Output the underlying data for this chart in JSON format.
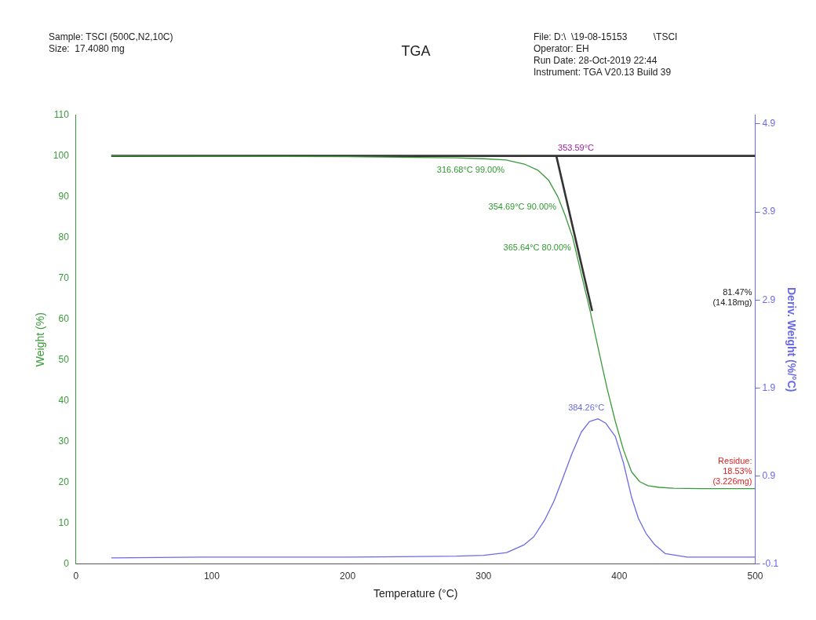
{
  "chart_data": {
    "type": "line",
    "title": "TGA",
    "xlabel": "Temperature (°C)",
    "ylabel": "Weight (%)",
    "y2label": "Deriv. Weight (%/°C)",
    "series": [
      {
        "name": null,
        "color": "#3a9a3a",
        "x": [
          26,
          100,
          200,
          280,
          300,
          316.68,
          330,
          340,
          348,
          354.69,
          360,
          365.64,
          372,
          378.5,
          385,
          391,
          397,
          403,
          409,
          415,
          421,
          429.5,
          440,
          460,
          480,
          500
        ],
        "values": [
          100,
          99.9,
          99.8,
          99.5,
          99.3,
          99,
          98,
          96.5,
          94,
          90,
          85.5,
          80,
          71,
          62,
          52,
          43,
          35,
          28,
          22.6,
          20.2,
          19.2,
          18.8,
          18.6,
          18.5,
          18.5,
          18.5
        ]
      },
      {
        "name": null,
        "color": "#6a6ae6",
        "axis": "y2",
        "x": [
          26,
          100,
          200,
          280,
          300,
          317,
          330,
          337,
          345,
          352,
          358,
          365,
          372,
          378,
          384.26,
          390,
          397,
          403,
          409,
          414,
          419.6,
          426,
          433.7,
          450,
          500
        ],
        "values": [
          -0.03,
          -0.02,
          -0.02,
          -0.01,
          0,
          0.03,
          0.12,
          0.21,
          0.4,
          0.62,
          0.86,
          1.15,
          1.4,
          1.52,
          1.55,
          1.5,
          1.35,
          1.05,
          0.66,
          0.42,
          0.25,
          0.12,
          0.02,
          -0.02,
          -0.02
        ]
      },
      {
        "name": null,
        "color": "#333333",
        "x": [
          26,
          500
        ],
        "values": [
          100,
          100
        ]
      },
      {
        "name": null,
        "color": "#333333",
        "x": [
          353.59,
          380
        ],
        "values": [
          100,
          62
        ]
      }
    ],
    "xlim": [
      0,
      500
    ],
    "xticks": [
      0,
      100,
      200,
      300,
      400,
      500
    ],
    "ylim": [
      0,
      110
    ],
    "yticks": [
      0,
      10,
      20,
      30,
      40,
      50,
      60,
      70,
      80,
      90,
      100,
      110
    ],
    "y2lim": [
      -0.1,
      5.0
    ],
    "y2ticks": [
      -0.1,
      0.9,
      1.9,
      2.9,
      3.9,
      4.9
    ],
    "grid": false,
    "legend": false,
    "marker": "none",
    "line_style": "solid",
    "annotations": [
      "Sample: TSCI (500C,N2,10C)\nSize:  17.4080 mg",
      "File: D:\\  \\19-08-15153          \\TSCI\nOperator: EH\nRun Date: 28-Oct-2019 22:44\nInstrument: TGA V20.13 Build 39",
      {
        "text": "316.68°C 99.00%",
        "x": 316.68,
        "y": 99
      },
      {
        "text": "354.69°C 90.00%",
        "x": 354.69,
        "y": 90
      },
      {
        "text": "365.64°C 80.00%",
        "x": 365.64,
        "y": 80
      },
      {
        "text": "353.59°C",
        "x": 353.59,
        "y": 100
      },
      "384.26°C",
      "81.47%\n(14.18mg)",
      {
        "text": "Residue:\n18.53%\n(3.226mg)",
        "x": 500,
        "y": 18.53
      }
    ]
  }
}
